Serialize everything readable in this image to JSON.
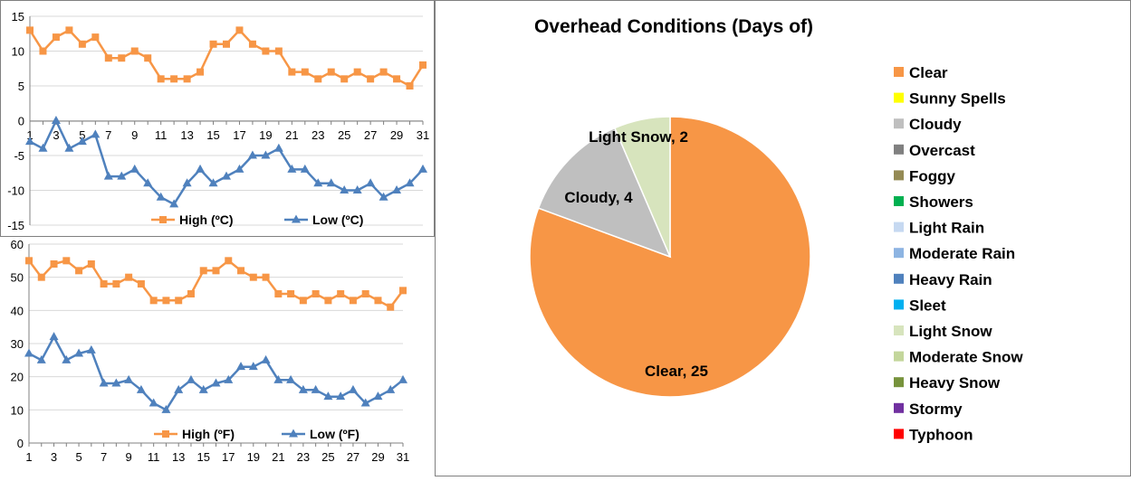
{
  "colors": {
    "high": "#F79646",
    "low": "#4F81BD",
    "grid": "#D9D9D9",
    "axis": "#808080"
  },
  "chart_data": [
    {
      "type": "line",
      "id": "celsius",
      "x": [
        1,
        2,
        3,
        4,
        5,
        6,
        7,
        8,
        9,
        10,
        11,
        12,
        13,
        14,
        15,
        16,
        17,
        18,
        19,
        20,
        21,
        22,
        23,
        24,
        25,
        26,
        27,
        28,
        29,
        30,
        31
      ],
      "xtick_labels": [
        "1",
        "3",
        "5",
        "7",
        "9",
        "11",
        "13",
        "15",
        "17",
        "19",
        "21",
        "23",
        "25",
        "27",
        "29",
        "31"
      ],
      "ylim": [
        -15,
        15
      ],
      "yticks": [
        -15,
        -10,
        -5,
        0,
        5,
        10,
        15
      ],
      "ytick_labels": [
        "-15",
        "-10",
        "-5",
        "0",
        "5",
        "10",
        "15"
      ],
      "series": [
        {
          "name": "High (ºC)",
          "marker": "square",
          "values": [
            13,
            10,
            12,
            13,
            11,
            12,
            9,
            9,
            10,
            9,
            6,
            6,
            6,
            7,
            11,
            11,
            13,
            11,
            10,
            10,
            7,
            7,
            6,
            7,
            6,
            7,
            6,
            7,
            6,
            5,
            8
          ]
        },
        {
          "name": "Low (ºC)",
          "marker": "triangle",
          "values": [
            -3,
            -4,
            0,
            -4,
            -3,
            -2,
            -8,
            -8,
            -7,
            -9,
            -11,
            -12,
            -9,
            -7,
            -9,
            -8,
            -7,
            -5,
            -5,
            -4,
            -7,
            -7,
            -9,
            -9,
            -10,
            -10,
            -9,
            -11,
            -10,
            -9,
            -7
          ]
        }
      ]
    },
    {
      "type": "line",
      "id": "fahrenheit",
      "x": [
        1,
        2,
        3,
        4,
        5,
        6,
        7,
        8,
        9,
        10,
        11,
        12,
        13,
        14,
        15,
        16,
        17,
        18,
        19,
        20,
        21,
        22,
        23,
        24,
        25,
        26,
        27,
        28,
        29,
        30,
        31
      ],
      "xtick_labels": [
        "1",
        "3",
        "5",
        "7",
        "9",
        "11",
        "13",
        "15",
        "17",
        "19",
        "21",
        "23",
        "25",
        "27",
        "29",
        "31"
      ],
      "ylim": [
        0,
        60
      ],
      "yticks": [
        0,
        10,
        20,
        30,
        40,
        50,
        60
      ],
      "ytick_labels": [
        "0",
        "10",
        "20",
        "30",
        "40",
        "50",
        "60"
      ],
      "series": [
        {
          "name": "High (ºF)",
          "marker": "square",
          "values": [
            55,
            50,
            54,
            55,
            52,
            54,
            48,
            48,
            50,
            48,
            43,
            43,
            43,
            45,
            52,
            52,
            55,
            52,
            50,
            50,
            45,
            45,
            43,
            45,
            43,
            45,
            43,
            45,
            43,
            41,
            46
          ]
        },
        {
          "name": "Low (ºF)",
          "marker": "triangle",
          "values": [
            27,
            25,
            32,
            25,
            27,
            28,
            18,
            18,
            19,
            16,
            12,
            10,
            16,
            19,
            16,
            18,
            19,
            23,
            23,
            25,
            19,
            19,
            16,
            16,
            14,
            14,
            16,
            12,
            14,
            16,
            19
          ]
        }
      ]
    },
    {
      "type": "pie",
      "id": "conditions",
      "title": "Overhead Conditions (Days of)",
      "slices": [
        {
          "label": "Clear",
          "value": 25,
          "color": "#F79646",
          "data_label": "Clear, 25"
        },
        {
          "label": "Cloudy",
          "value": 4,
          "color": "#BFBFBF",
          "data_label": "Cloudy, 4"
        },
        {
          "label": "Light Snow",
          "value": 2,
          "color": "#D7E4BD",
          "data_label": "Light Snow, 2"
        }
      ],
      "legend": [
        {
          "label": "Clear",
          "color": "#F79646"
        },
        {
          "label": "Sunny Spells",
          "color": "#FFFF00"
        },
        {
          "label": "Cloudy",
          "color": "#BFBFBF"
        },
        {
          "label": "Overcast",
          "color": "#808080"
        },
        {
          "label": "Foggy",
          "color": "#948A54"
        },
        {
          "label": "Showers",
          "color": "#00B050"
        },
        {
          "label": "Light Rain",
          "color": "#C6D9F1"
        },
        {
          "label": "Moderate Rain",
          "color": "#8DB4E2"
        },
        {
          "label": "Heavy Rain",
          "color": "#4F81BD"
        },
        {
          "label": "Sleet",
          "color": "#00B0F0"
        },
        {
          "label": "Light Snow",
          "color": "#D7E4BD"
        },
        {
          "label": "Moderate Snow",
          "color": "#C3D69B"
        },
        {
          "label": "Heavy Snow",
          "color": "#77933C"
        },
        {
          "label": "Stormy",
          "color": "#7030A0"
        },
        {
          "label": "Typhoon",
          "color": "#FF0000"
        }
      ],
      "legend_position": "right"
    }
  ]
}
